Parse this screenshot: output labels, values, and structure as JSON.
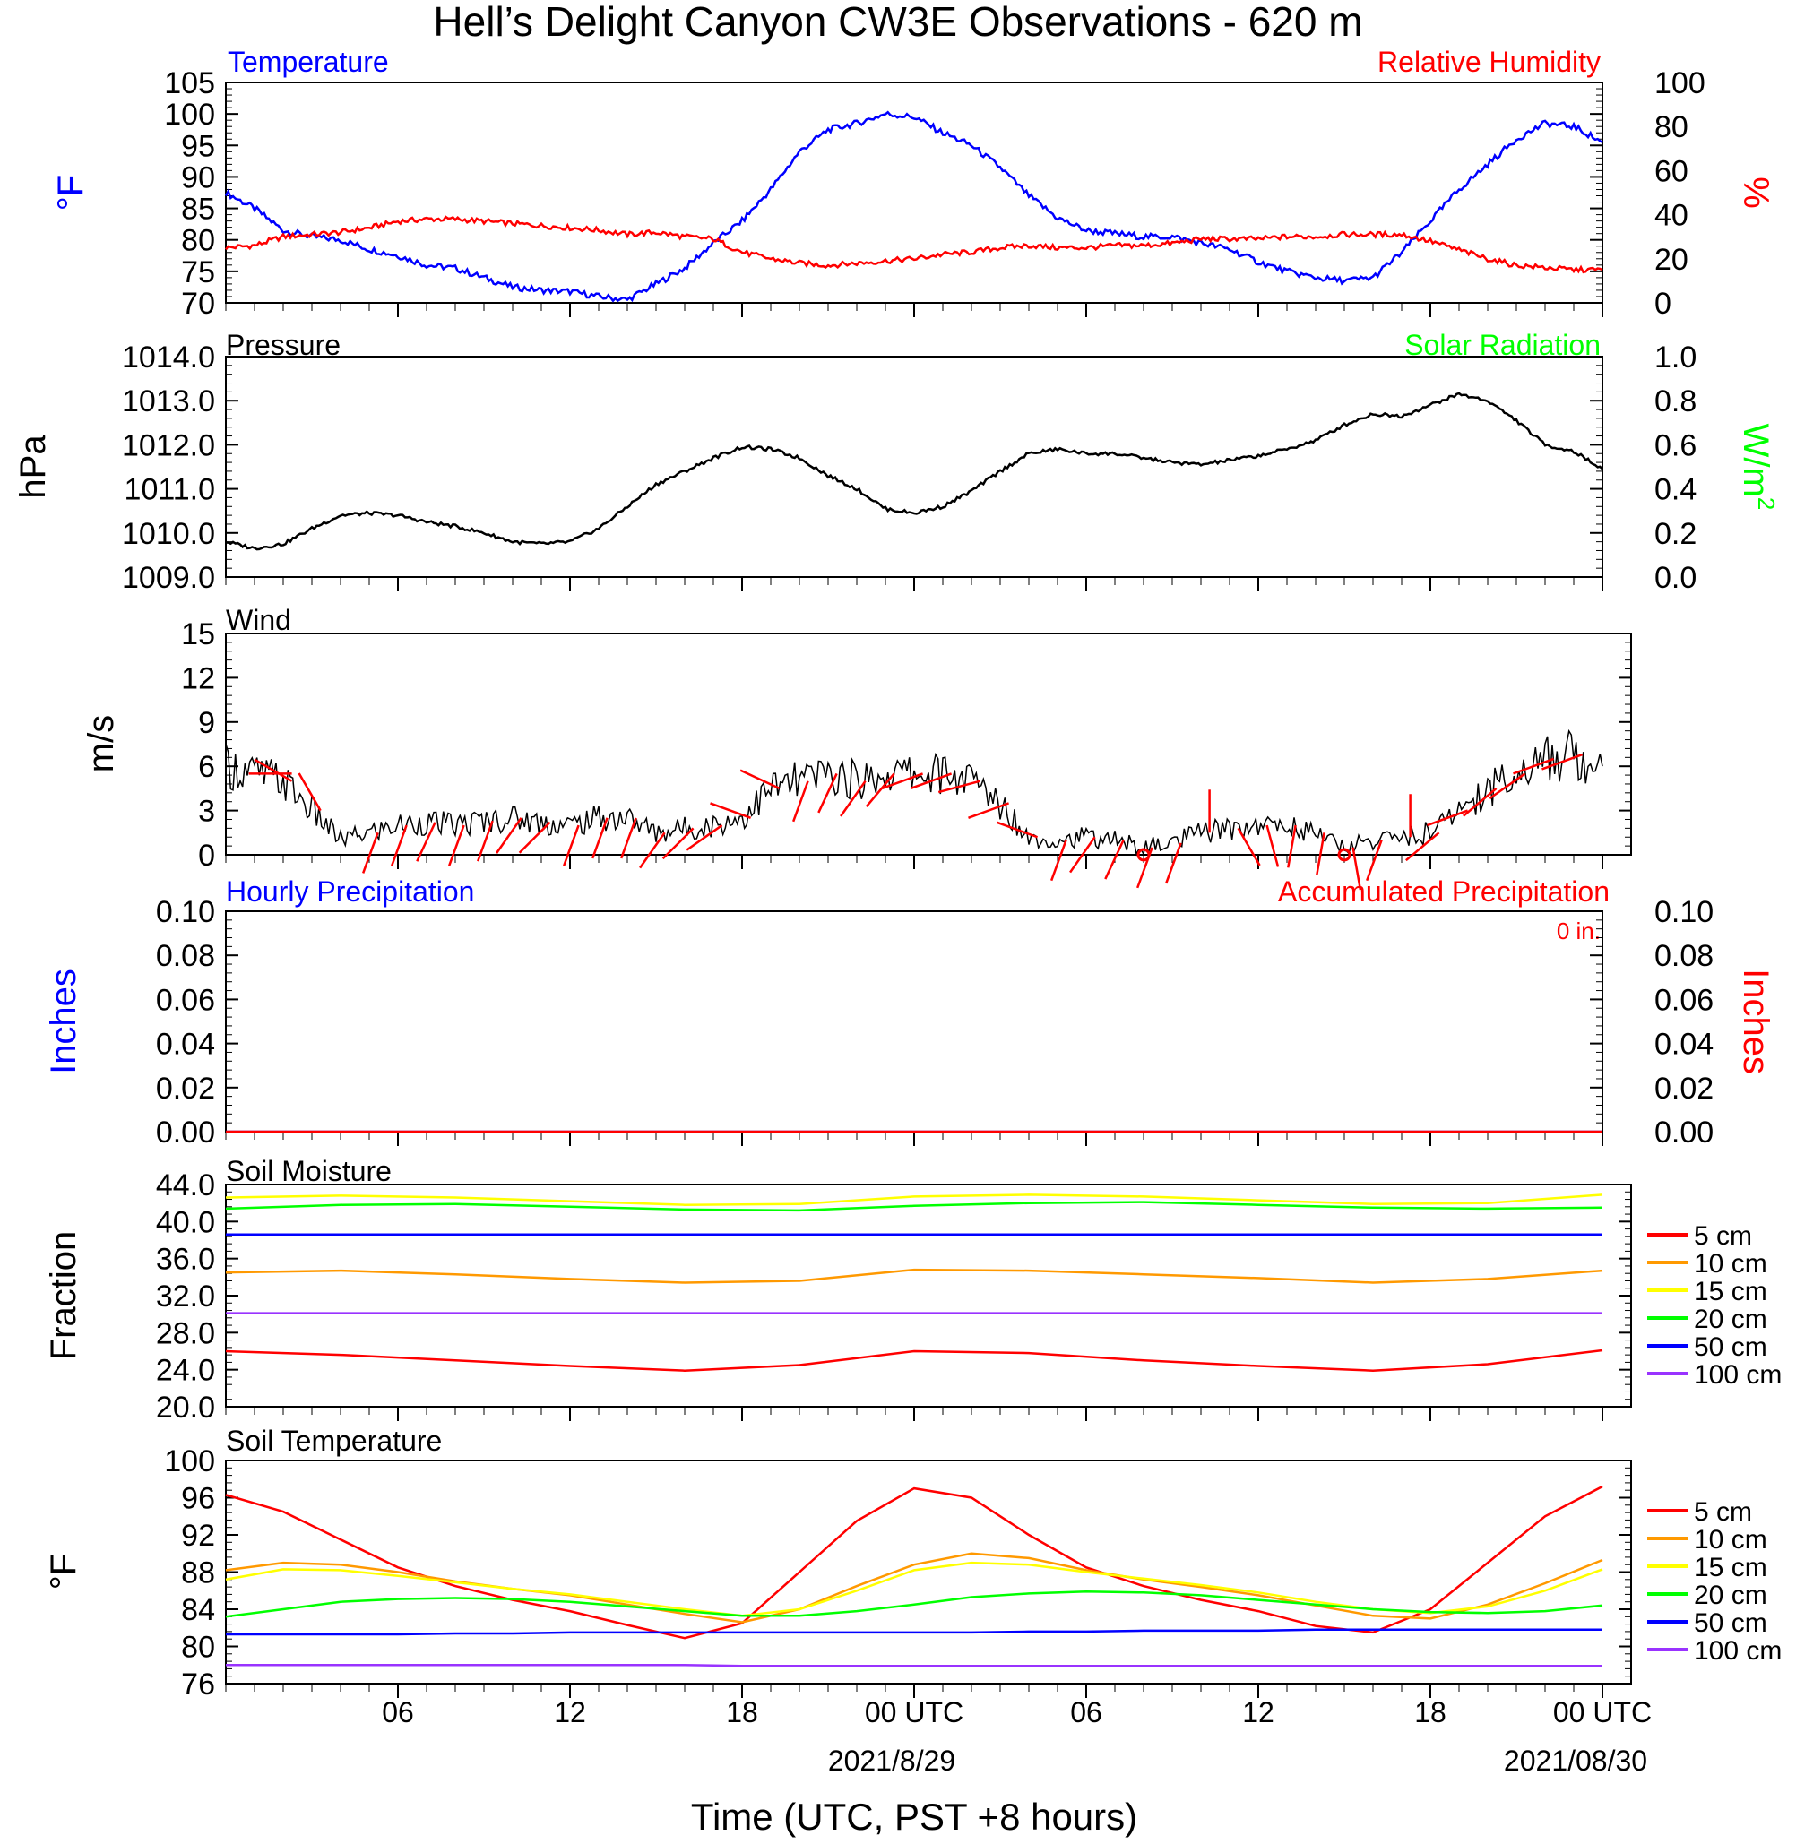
{
  "title": "Hell’s Delight Canyon CW3E Observations - 620 m",
  "xaxis": {
    "ticks": [
      "06",
      "12",
      "18",
      "00 UTC",
      "06",
      "12",
      "18",
      "00 UTC"
    ],
    "dates": [
      "2021/8/29",
      "2021/08/30"
    ],
    "xlabel": "Time (UTC, PST +8 hours)"
  },
  "colors": {
    "blue": "#0000ff",
    "red": "#ff0000",
    "green": "#00ff00",
    "yellow": "#ffff00",
    "orange": "#ff9900",
    "purple": "#9933ff",
    "black": "#000000"
  },
  "chart_data": [
    {
      "id": "temp_rh",
      "type": "line",
      "title_left": "Temperature",
      "title_right": "Relative Humidity",
      "ylabel_left": "°F",
      "ylabel_right": "%",
      "ylim_left": [
        70,
        105
      ],
      "ylim_right": [
        0,
        100
      ],
      "yticks_left": [
        "105",
        "100",
        "95",
        "90",
        "85",
        "80",
        "75",
        "70"
      ],
      "yticks_right": [
        "100",
        "80",
        "60",
        "40",
        "20",
        "0"
      ],
      "x_hours": [
        1,
        2,
        3,
        4,
        5,
        6,
        7,
        8,
        9,
        10,
        11,
        12,
        13,
        14,
        15,
        16,
        17,
        18,
        19,
        20,
        21,
        22,
        23,
        24,
        25,
        26,
        27,
        28,
        29,
        30,
        31,
        32,
        33,
        34,
        35,
        36,
        37,
        38,
        39,
        40,
        41,
        42,
        43,
        44,
        45,
        46,
        47,
        48,
        49
      ],
      "series": [
        {
          "name": "Temperature",
          "axis": "left",
          "values": [
            87.5,
            85,
            81.5,
            80.5,
            80,
            78.5,
            77.5,
            76,
            75.5,
            74,
            72.5,
            72,
            71.8,
            71,
            70.5,
            73,
            75.5,
            79.5,
            83,
            88,
            94,
            97.5,
            98.5,
            100,
            99.5,
            97,
            95,
            91.5,
            87,
            83.5,
            81.5,
            81,
            80.5,
            80.5,
            79.5,
            78.5,
            76.5,
            75,
            74,
            73.5,
            74,
            78,
            83,
            88,
            92,
            96,
            98.5,
            98,
            95.5
          ]
        },
        {
          "name": "Relative Humidity",
          "axis": "right",
          "values": [
            25,
            26,
            30,
            31,
            32,
            34,
            37,
            38,
            38,
            37,
            36,
            35,
            34,
            33,
            31,
            32,
            30,
            29,
            23,
            20,
            18,
            17,
            18,
            19,
            20,
            22,
            23,
            25,
            26,
            25,
            25,
            26,
            26,
            27,
            29,
            29,
            29,
            30,
            30,
            31,
            31,
            31,
            28,
            24,
            20,
            17,
            16,
            15,
            15
          ]
        }
      ]
    },
    {
      "id": "pressure_solar",
      "type": "line",
      "title_left": "Pressure",
      "title_right": "Solar Radiation",
      "ylabel_left": "hPa",
      "ylabel_right": "W/m",
      "ylabel_right_sup": "2",
      "ylim_left": [
        1009.0,
        1014.0
      ],
      "ylim_right": [
        0.0,
        1.0
      ],
      "yticks_left": [
        "1014.0",
        "1013.0",
        "1012.0",
        "1011.0",
        "1010.0",
        "1009.0"
      ],
      "yticks_right": [
        "1.0",
        "0.8",
        "0.6",
        "0.4",
        "0.2",
        "0.0"
      ],
      "x_hours": [
        1,
        2,
        3,
        4,
        5,
        6,
        7,
        8,
        9,
        10,
        11,
        12,
        13,
        14,
        15,
        16,
        17,
        18,
        19,
        20,
        21,
        22,
        23,
        24,
        25,
        26,
        27,
        28,
        29,
        30,
        31,
        32,
        33,
        34,
        35,
        36,
        37,
        38,
        39,
        40,
        41,
        42,
        43,
        44,
        45,
        46,
        47,
        48,
        49
      ],
      "series": [
        {
          "name": "Pressure",
          "axis": "left",
          "values": [
            1009.8,
            1009.65,
            1009.75,
            1010.1,
            1010.4,
            1010.45,
            1010.4,
            1010.25,
            1010.15,
            1010.0,
            1009.8,
            1009.75,
            1009.8,
            1010.1,
            1010.6,
            1011.1,
            1011.4,
            1011.7,
            1011.95,
            1011.9,
            1011.7,
            1011.3,
            1011.0,
            1010.55,
            1010.45,
            1010.6,
            1010.95,
            1011.4,
            1011.8,
            1011.9,
            1011.8,
            1011.8,
            1011.7,
            1011.6,
            1011.55,
            1011.65,
            1011.75,
            1011.9,
            1012.1,
            1012.45,
            1012.7,
            1012.65,
            1012.9,
            1013.15,
            1013.0,
            1012.55,
            1012.0,
            1011.85,
            1011.45
          ]
        }
      ]
    },
    {
      "id": "wind",
      "type": "line",
      "title_left": "Wind",
      "ylabel_left": "m/s",
      "ylim_left": [
        0,
        15
      ],
      "yticks_left": [
        "15",
        "12",
        "9",
        "6",
        "3",
        "0"
      ],
      "x_hours": [
        1,
        2,
        3,
        4,
        5,
        6,
        7,
        8,
        9,
        10,
        11,
        12,
        13,
        14,
        15,
        16,
        17,
        18,
        19,
        20,
        21,
        22,
        23,
        24,
        25,
        26,
        27,
        28,
        29,
        30,
        31,
        32,
        33,
        34,
        35,
        36,
        37,
        38,
        39,
        40,
        41,
        42,
        43,
        44,
        45,
        46,
        47,
        48,
        49
      ],
      "series": [
        {
          "name": "Wind speed",
          "values": [
            6.0,
            5.5,
            5.0,
            3.0,
            1.0,
            1.5,
            2.0,
            2.2,
            2.0,
            2.3,
            2.5,
            2.2,
            2.0,
            2.5,
            2.5,
            1.5,
            1.8,
            2.0,
            2.5,
            4.5,
            5.0,
            5.5,
            5.0,
            5.5,
            5.5,
            5.5,
            5.0,
            3.5,
            1.2,
            1.0,
            1.2,
            1.0,
            0.5,
            0.8,
            1.5,
            1.8,
            2.0,
            2.0,
            1.5,
            0.5,
            1.0,
            1.2,
            1.5,
            3.0,
            4.5,
            5.5,
            6.5,
            6.8,
            6.0
          ]
        },
        {
          "name": "Wind barbs",
          "type": "barbs",
          "hours": [
            1.8,
            3.3,
            4.3,
            6.3,
            7.3,
            8.3,
            9.3,
            10.3,
            11.3,
            12.3,
            13.3,
            14.3,
            15.3,
            16.3,
            17.3,
            18.3,
            19.3,
            20.3,
            21.3,
            22.3,
            23.3,
            24.3,
            25.3,
            26.3,
            27.3,
            28.3,
            29.3,
            30.3,
            31.3,
            32.3,
            33.3,
            34.3,
            35.3,
            36.3,
            37.3,
            38.3,
            39.3,
            40.3,
            41.3,
            42.3,
            43.3,
            44.3,
            45.3,
            46.3,
            47.3,
            48.3
          ],
          "dir_deg": [
            90,
            300,
            330,
            200,
            200,
            205,
            200,
            200,
            215,
            225,
            200,
            200,
            200,
            215,
            225,
            235,
            290,
            295,
            200,
            205,
            215,
            220,
            250,
            250,
            255,
            250,
            290,
            200,
            215,
            205,
            200,
            200,
            0,
            150,
            165,
            190,
            190,
            170,
            200,
            0,
            230,
            250,
            230,
            235,
            250,
            250
          ],
          "calm_hours": [
            33.0,
            40.0
          ]
        }
      ]
    },
    {
      "id": "precip",
      "type": "line",
      "title_left": "Hourly Precipitation",
      "title_right": "Accumulated Precipitation",
      "annotation": "0 in.",
      "ylabel_left": "Inches",
      "ylabel_right": "Inches",
      "ylim_left": [
        0.0,
        0.1
      ],
      "ylim_right": [
        0.0,
        0.1
      ],
      "yticks_left": [
        "0.10",
        "0.08",
        "0.06",
        "0.04",
        "0.02",
        "0.00"
      ],
      "yticks_right": [
        "0.10",
        "0.08",
        "0.06",
        "0.04",
        "0.02",
        "0.00"
      ],
      "x_hours": [
        1,
        49
      ],
      "series": [
        {
          "name": "Hourly Precipitation",
          "values": [
            0,
            0
          ]
        },
        {
          "name": "Accumulated Precipitation",
          "values": [
            0,
            0
          ]
        }
      ]
    },
    {
      "id": "soil_moisture",
      "type": "line",
      "title_left": "Soil Moisture",
      "ylabel_left": "Fraction",
      "ylim_left": [
        20.0,
        44.0
      ],
      "yticks_left": [
        "44.0",
        "40.0",
        "36.0",
        "32.0",
        "28.0",
        "24.0",
        "20.0"
      ],
      "legend": [
        "5 cm",
        "10 cm",
        "15 cm",
        "20 cm",
        "50 cm",
        "100 cm"
      ],
      "x_hours": [
        1,
        5,
        9,
        13,
        17,
        21,
        25,
        29,
        33,
        37,
        41,
        45,
        49
      ],
      "series": [
        {
          "name": "5 cm",
          "values": [
            26.0,
            25.6,
            25.0,
            24.4,
            23.9,
            24.5,
            26.0,
            25.8,
            25.0,
            24.4,
            23.9,
            24.6,
            26.1
          ]
        },
        {
          "name": "10 cm",
          "values": [
            34.5,
            34.7,
            34.3,
            33.8,
            33.4,
            33.6,
            34.8,
            34.7,
            34.3,
            33.9,
            33.4,
            33.8,
            34.7
          ]
        },
        {
          "name": "15 cm",
          "values": [
            42.6,
            42.8,
            42.6,
            42.2,
            41.8,
            41.9,
            42.7,
            42.9,
            42.7,
            42.3,
            41.9,
            42.0,
            42.9
          ]
        },
        {
          "name": "20 cm",
          "values": [
            41.4,
            41.8,
            41.9,
            41.6,
            41.3,
            41.2,
            41.7,
            42.0,
            42.1,
            41.8,
            41.5,
            41.4,
            41.5
          ]
        },
        {
          "name": "50 cm",
          "values": [
            38.6,
            38.6,
            38.6,
            38.6,
            38.6,
            38.6,
            38.6,
            38.6,
            38.6,
            38.6,
            38.6,
            38.6,
            38.6
          ]
        },
        {
          "name": "100 cm",
          "values": [
            30.1,
            30.1,
            30.1,
            30.1,
            30.1,
            30.1,
            30.1,
            30.1,
            30.1,
            30.1,
            30.1,
            30.1,
            30.1
          ]
        }
      ]
    },
    {
      "id": "soil_temperature",
      "type": "line",
      "title_left": "Soil Temperature",
      "ylabel_left": "°F",
      "ylim_left": [
        76,
        100
      ],
      "yticks_left": [
        "100",
        "96",
        "92",
        "88",
        "84",
        "80",
        "76"
      ],
      "legend": [
        "5 cm",
        "10 cm",
        "15 cm",
        "20 cm",
        "50 cm",
        "100 cm"
      ],
      "x_hours": [
        1,
        3,
        5,
        7,
        9,
        11,
        13,
        15,
        17,
        19,
        21,
        23,
        25,
        27,
        29,
        31,
        33,
        35,
        37,
        39,
        41,
        43,
        45,
        47,
        49
      ],
      "series": [
        {
          "name": "5 cm",
          "values": [
            96.3,
            94.5,
            91.5,
            88.5,
            86.5,
            85.0,
            83.8,
            82.3,
            80.9,
            82.5,
            88.0,
            93.5,
            97.0,
            96.0,
            92.0,
            88.5,
            86.5,
            85.0,
            83.8,
            82.2,
            81.5,
            84.0,
            89.0,
            94.0,
            97.2
          ]
        },
        {
          "name": "10 cm",
          "values": [
            88.2,
            89.0,
            88.8,
            88.0,
            87.0,
            86.2,
            85.5,
            84.5,
            83.5,
            82.6,
            84.0,
            86.5,
            88.8,
            90.0,
            89.5,
            88.2,
            87.2,
            86.4,
            85.5,
            84.4,
            83.3,
            83.0,
            84.5,
            86.8,
            89.3
          ]
        },
        {
          "name": "15 cm",
          "values": [
            87.2,
            88.3,
            88.2,
            87.6,
            86.9,
            86.2,
            85.6,
            84.8,
            84.0,
            83.3,
            84.0,
            86.0,
            88.2,
            89.0,
            88.8,
            88.0,
            87.3,
            86.6,
            85.8,
            84.8,
            84.0,
            83.6,
            84.3,
            86.0,
            88.3
          ]
        },
        {
          "name": "20 cm",
          "values": [
            83.2,
            84.0,
            84.8,
            85.1,
            85.2,
            85.1,
            84.8,
            84.3,
            83.8,
            83.3,
            83.3,
            83.8,
            84.5,
            85.3,
            85.7,
            85.9,
            85.8,
            85.5,
            85.0,
            84.5,
            84.0,
            83.7,
            83.6,
            83.8,
            84.4
          ]
        },
        {
          "name": "50 cm",
          "values": [
            81.3,
            81.3,
            81.3,
            81.3,
            81.4,
            81.4,
            81.5,
            81.5,
            81.5,
            81.5,
            81.5,
            81.5,
            81.5,
            81.5,
            81.6,
            81.6,
            81.7,
            81.7,
            81.7,
            81.8,
            81.8,
            81.8,
            81.8,
            81.8,
            81.8
          ]
        },
        {
          "name": "100 cm",
          "values": [
            78.0,
            78.0,
            78.0,
            78.0,
            78.0,
            78.0,
            78.0,
            78.0,
            78.0,
            77.9,
            77.9,
            77.9,
            77.9,
            77.9,
            77.9,
            77.9,
            77.9,
            77.9,
            77.9,
            77.9,
            77.9,
            77.9,
            77.9,
            77.9,
            77.9
          ]
        }
      ]
    }
  ]
}
